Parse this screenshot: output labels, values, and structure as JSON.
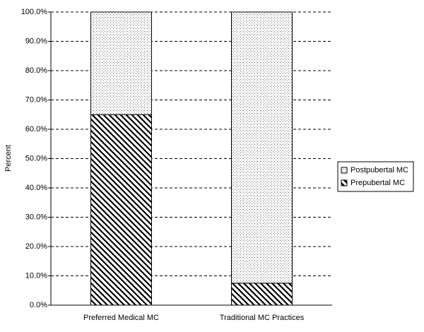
{
  "chart_data": {
    "type": "stacked_bar",
    "categories": [
      "Preferred Medical MC",
      "Traditional MC Practices"
    ],
    "series": [
      {
        "name": "Prepubertal MC",
        "pattern": "hatch",
        "values": [
          65,
          7.5
        ]
      },
      {
        "name": "Postpubertal MC",
        "pattern": "dots",
        "values": [
          35,
          92.5
        ]
      }
    ],
    "y_label": "Percent",
    "ylim": [
      0,
      100
    ],
    "yticks": [
      {
        "value": 0,
        "label": "0.0%"
      },
      {
        "value": 10,
        "label": "10.0%"
      },
      {
        "value": 20,
        "label": "20.0%"
      },
      {
        "value": 30,
        "label": "30.0%"
      },
      {
        "value": 40,
        "label": "40.0%"
      },
      {
        "value": 50,
        "label": "50.0%"
      },
      {
        "value": 60,
        "label": "60.0%"
      },
      {
        "value": 70,
        "label": "70.0%"
      },
      {
        "value": 80,
        "label": "80.0%"
      },
      {
        "value": 90,
        "label": "90.0%"
      },
      {
        "value": 100,
        "label": "100.0%"
      }
    ],
    "grid": true,
    "legend_position": "right"
  }
}
